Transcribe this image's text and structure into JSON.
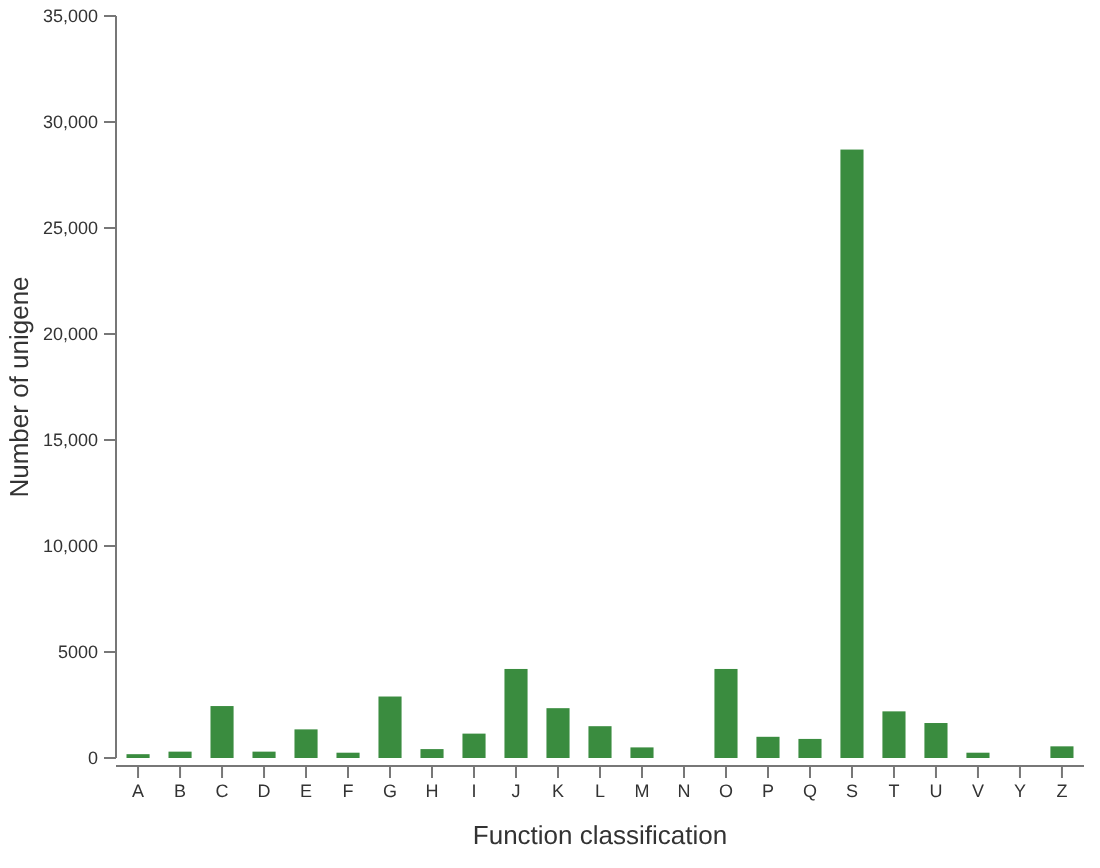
{
  "chart_data": {
    "type": "bar",
    "xlabel": "Function classification",
    "ylabel": "Number of unigene",
    "categories": [
      "A",
      "B",
      "C",
      "D",
      "E",
      "F",
      "G",
      "H",
      "I",
      "J",
      "K",
      "L",
      "M",
      "N",
      "O",
      "P",
      "Q",
      "S",
      "T",
      "U",
      "V",
      "Y",
      "Z"
    ],
    "values": [
      180,
      300,
      2450,
      300,
      1350,
      250,
      2900,
      420,
      1150,
      4200,
      2350,
      1500,
      500,
      0,
      4200,
      1000,
      900,
      28700,
      2200,
      1650,
      250,
      0,
      550
    ],
    "color": "#3a8c3f",
    "ylim": [
      0,
      35000
    ],
    "yticks": [
      0,
      {
        "value": 5000,
        "label": "5000"
      },
      {
        "value": 10000,
        "label": "10,000"
      },
      {
        "value": 15000,
        "label": "15,000"
      },
      {
        "value": 20000,
        "label": "20,000"
      },
      {
        "value": 25000,
        "label": "25,000"
      },
      {
        "value": 30000,
        "label": "30,000"
      },
      {
        "value": 35000,
        "label": "35,000"
      }
    ],
    "grid": false
  }
}
